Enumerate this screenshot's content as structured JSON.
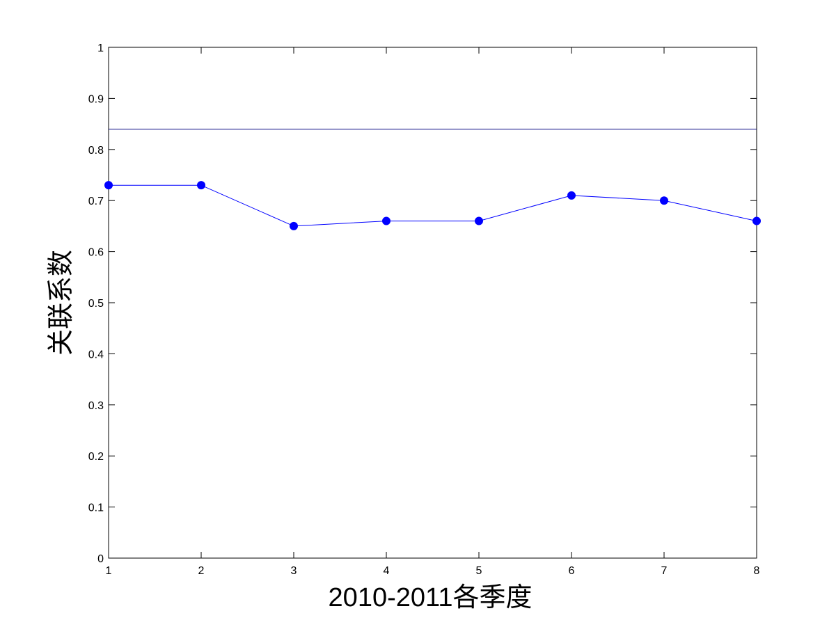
{
  "chart_data": {
    "type": "line",
    "xlabel": "2010-2011各季度",
    "ylabel": "关联系数",
    "xlim": [
      1,
      8
    ],
    "ylim": [
      0,
      1
    ],
    "x_ticks": [
      "1",
      "2",
      "3",
      "4",
      "5",
      "6",
      "7",
      "8"
    ],
    "y_ticks": [
      "0",
      "0.1",
      "0.2",
      "0.3",
      "0.4",
      "0.5",
      "0.6",
      "0.7",
      "0.8",
      "0.9",
      "1"
    ],
    "grid": false,
    "series": [
      {
        "x": [
          1,
          2,
          3,
          4,
          5,
          6,
          7,
          8
        ],
        "values": [
          0.73,
          0.73,
          0.65,
          0.66,
          0.66,
          0.71,
          0.7,
          0.66
        ],
        "color": "#0000ff",
        "marker": "circle"
      }
    ],
    "reference_lines": [
      {
        "y": 0.84,
        "color": "#000080"
      }
    ]
  }
}
